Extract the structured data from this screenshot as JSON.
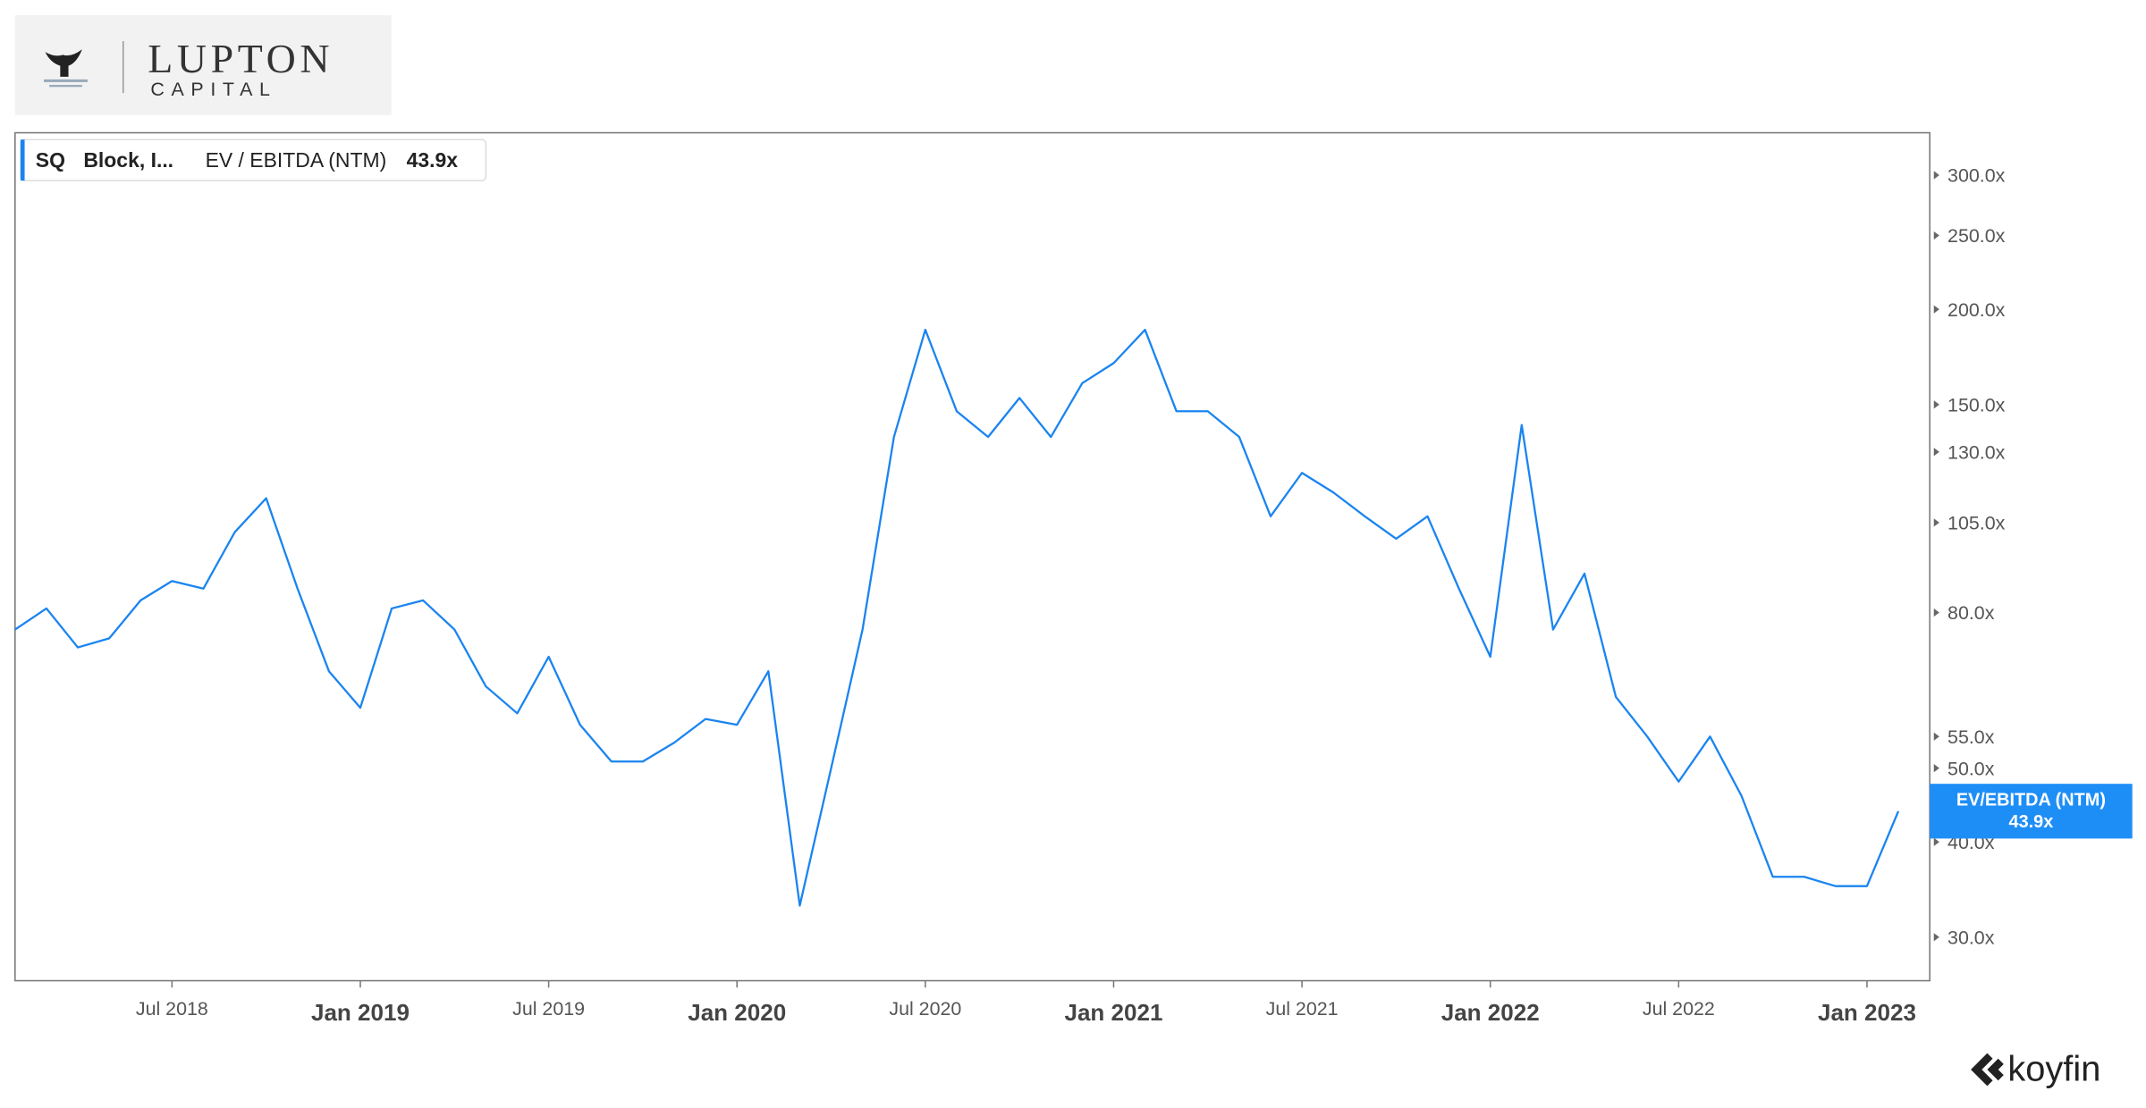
{
  "header": {
    "logo_name": "LUPTON",
    "logo_sub": "CAPITAL",
    "brand": "koyfin"
  },
  "chart_data": {
    "type": "line",
    "ticker": "SQ",
    "company": "Block, I...",
    "last_tag_label": "EV/EBITDA (NTM)",
    "log_scale": true,
    "color": "#1a84f0",
    "x": [
      "2018-02",
      "2018-03",
      "2018-04",
      "2018-05",
      "2018-06",
      "2018-07",
      "2018-08",
      "2018-09",
      "2018-10",
      "2018-11",
      "2018-12",
      "2019-01",
      "2019-02",
      "2019-03",
      "2019-04",
      "2019-05",
      "2019-06",
      "2019-07",
      "2019-08",
      "2019-09",
      "2019-10",
      "2019-11",
      "2019-12",
      "2020-01",
      "2020-02",
      "2020-03",
      "2020-04",
      "2020-05",
      "2020-06",
      "2020-07",
      "2020-08",
      "2020-09",
      "2020-10",
      "2020-11",
      "2020-12",
      "2021-01",
      "2021-02",
      "2021-03",
      "2021-04",
      "2021-05",
      "2021-06",
      "2021-07",
      "2021-08",
      "2021-09",
      "2021-10",
      "2021-11",
      "2021-12",
      "2022-01",
      "2022-02",
      "2022-03",
      "2022-04",
      "2022-05",
      "2022-06",
      "2022-07",
      "2022-08",
      "2022-09",
      "2022-10",
      "2022-11",
      "2022-12",
      "2023-01",
      "2023-02"
    ],
    "series": [
      {
        "name": "EV / EBITDA (NTM)",
        "color": "#1a84f0",
        "values": [
          76,
          81,
          72,
          74,
          83,
          88,
          86,
          102,
          113,
          86,
          67,
          60,
          81,
          83,
          76,
          64,
          59,
          70,
          57,
          51,
          51,
          54,
          58,
          57,
          67,
          33,
          50,
          76,
          136,
          188,
          147,
          136,
          153,
          136,
          160,
          170,
          188,
          147,
          147,
          136,
          107,
          122,
          115,
          107,
          100,
          107,
          86,
          70,
          141,
          76,
          90,
          62,
          55,
          48,
          55,
          46,
          36,
          36,
          35,
          35,
          43.9
        ],
        "value_labels": [
          null,
          null,
          null,
          null,
          null,
          null,
          null,
          null,
          null,
          null,
          null,
          null,
          null,
          null,
          null,
          null,
          null,
          null,
          null,
          null,
          null,
          null,
          null,
          null,
          null,
          null,
          null,
          null,
          null,
          null,
          null,
          null,
          null,
          null,
          null,
          null,
          null,
          null,
          null,
          null,
          null,
          null,
          null,
          null,
          null,
          null,
          null,
          null,
          null,
          null,
          null,
          null,
          null,
          null,
          null,
          null,
          null,
          null,
          null,
          null,
          "43.9x"
        ]
      }
    ],
    "xlim": [
      "2018-02",
      "2023-03"
    ],
    "xticks": [
      {
        "value": "2018-07",
        "label": "Jul 2018"
      },
      {
        "value": "2019-01",
        "label": "Jan 2019"
      },
      {
        "value": "2019-07",
        "label": "Jul 2019"
      },
      {
        "value": "2020-01",
        "label": "Jan 2020"
      },
      {
        "value": "2020-07",
        "label": "Jul 2020"
      },
      {
        "value": "2021-01",
        "label": "Jan 2021"
      },
      {
        "value": "2021-07",
        "label": "Jul 2021"
      },
      {
        "value": "2022-01",
        "label": "Jan 2022"
      },
      {
        "value": "2022-07",
        "label": "Jul 2022"
      },
      {
        "value": "2023-01",
        "label": "Jan 2023"
      }
    ],
    "ylim": [
      26.3,
      341
    ],
    "yticks": [
      {
        "value": 30,
        "label": "30.0x"
      },
      {
        "value": 40,
        "label": "40.0x"
      },
      {
        "value": 50,
        "label": "50.0x"
      },
      {
        "value": 55,
        "label": "55.0x"
      },
      {
        "value": 80,
        "label": "80.0x"
      },
      {
        "value": 105,
        "label": "105.0x"
      },
      {
        "value": 130,
        "label": "130.0x"
      },
      {
        "value": 150,
        "label": "150.0x"
      },
      {
        "value": 200,
        "label": "200.0x"
      },
      {
        "value": 250,
        "label": "250.0x"
      },
      {
        "value": 300,
        "label": "300.0x"
      }
    ]
  }
}
